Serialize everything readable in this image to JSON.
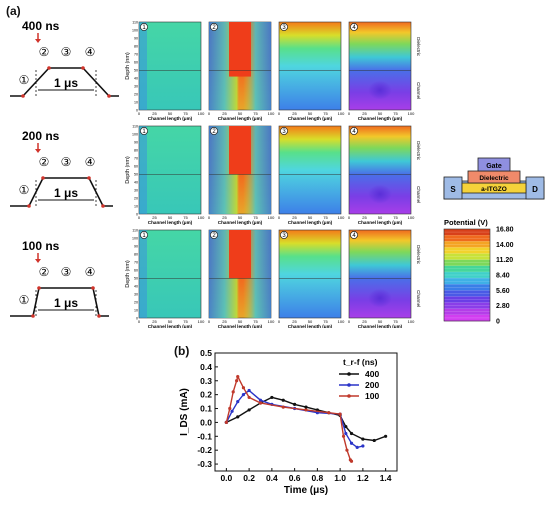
{
  "panel_a_label": "(a)",
  "panel_b_label": "(b)",
  "rows": [
    {
      "rise_label": "400 ns",
      "period_label": "1 μs",
      "steps": [
        "①",
        "②",
        "③",
        "④"
      ]
    },
    {
      "rise_label": "200 ns",
      "period_label": "1 μs",
      "steps": [
        "①",
        "②",
        "③",
        "④"
      ]
    },
    {
      "rise_label": "100 ns",
      "period_label": "1 μs",
      "steps": [
        "①",
        "②",
        "③",
        "④"
      ]
    }
  ],
  "map_axis": {
    "xlabel": "Channel length (μm)",
    "ylabel": "Depth (nm)",
    "xticks": [
      "0",
      "25",
      "50",
      "75",
      "100"
    ],
    "yticks": [
      "0",
      "10",
      "20",
      "30",
      "40",
      "50",
      "60",
      "70",
      "80",
      "90",
      "100",
      "110"
    ],
    "region_dielectric": "Dielectric",
    "region_channel": "Channel",
    "panel_numbers": [
      "1",
      "2",
      "3",
      "4"
    ]
  },
  "device": {
    "gate": "Gate",
    "dielectric": "Dielectric",
    "channel": "a-ITGZO",
    "source": "S",
    "drain": "D"
  },
  "colorbar": {
    "title": "Potential (V)",
    "ticks": [
      "16.80",
      "14.00",
      "11.20",
      "8.40",
      "5.60",
      "2.80",
      "0"
    ]
  },
  "chart_data": {
    "type": "line",
    "title": "",
    "xlabel": "Time (μs)",
    "ylabel": "I_DS (mA)",
    "xlim": [
      -0.1,
      1.5
    ],
    "ylim": [
      -0.35,
      0.5
    ],
    "xticks": [
      0.0,
      0.2,
      0.4,
      0.6,
      0.8,
      1.0,
      1.2,
      1.4
    ],
    "yticks": [
      -0.3,
      -0.2,
      -0.1,
      0.0,
      0.1,
      0.2,
      0.3,
      0.4,
      0.5
    ],
    "legend_title": "t_r-f (ns)",
    "legend_position": "top-right",
    "series": [
      {
        "name": "400",
        "color": "#111111",
        "x": [
          0.0,
          0.1,
          0.2,
          0.3,
          0.4,
          0.5,
          0.6,
          0.7,
          0.8,
          0.9,
          1.0,
          1.05,
          1.1,
          1.2,
          1.3,
          1.4
        ],
        "y": [
          0.0,
          0.04,
          0.09,
          0.14,
          0.18,
          0.16,
          0.13,
          0.11,
          0.09,
          0.07,
          0.05,
          -0.03,
          -0.08,
          -0.12,
          -0.13,
          -0.1
        ]
      },
      {
        "name": "200",
        "color": "#2a34c8",
        "x": [
          0.0,
          0.05,
          0.1,
          0.15,
          0.2,
          0.3,
          0.4,
          0.6,
          0.8,
          1.0,
          1.05,
          1.1,
          1.15,
          1.2
        ],
        "y": [
          0.0,
          0.08,
          0.15,
          0.2,
          0.23,
          0.16,
          0.13,
          0.1,
          0.07,
          0.06,
          -0.08,
          -0.15,
          -0.18,
          -0.17
        ]
      },
      {
        "name": "100",
        "color": "#c0392b",
        "x": [
          0.0,
          0.03,
          0.06,
          0.09,
          0.1,
          0.15,
          0.2,
          0.3,
          0.5,
          0.7,
          0.9,
          1.0,
          1.03,
          1.06,
          1.09,
          1.1
        ],
        "y": [
          0.0,
          0.1,
          0.22,
          0.3,
          0.33,
          0.25,
          0.18,
          0.14,
          0.11,
          0.09,
          0.07,
          0.06,
          -0.1,
          -0.2,
          -0.27,
          -0.28
        ]
      }
    ]
  }
}
